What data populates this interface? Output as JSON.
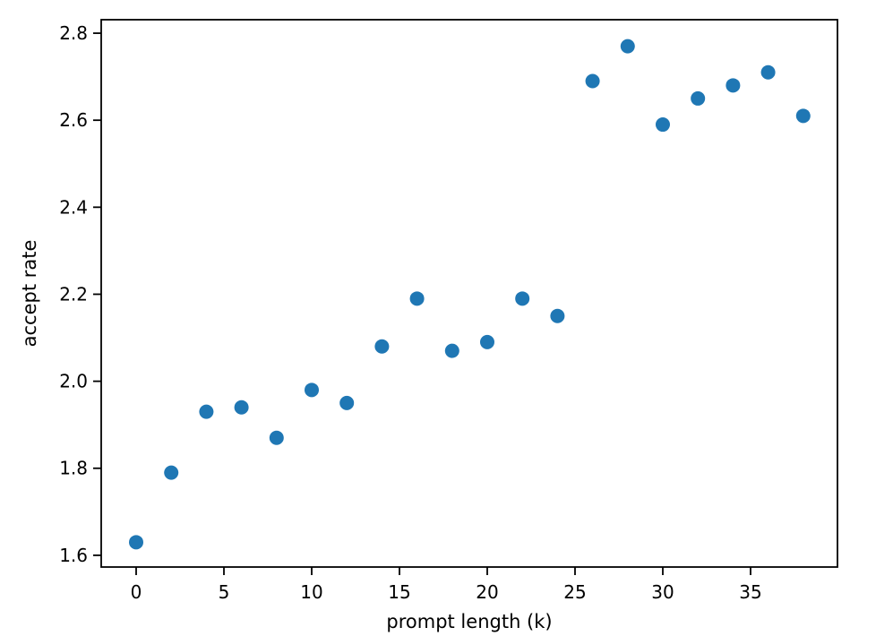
{
  "figure": {
    "background_color": "#ffffff"
  },
  "chart_data": {
    "type": "scatter",
    "title": "",
    "xlabel": "prompt length (k)",
    "ylabel": "accept rate",
    "x": [
      0,
      2,
      4,
      6,
      8,
      10,
      12,
      14,
      16,
      18,
      20,
      22,
      24,
      26,
      28,
      30,
      32,
      34,
      36,
      38
    ],
    "y": [
      1.63,
      1.79,
      1.93,
      1.94,
      1.87,
      1.98,
      1.95,
      2.08,
      2.19,
      2.07,
      2.09,
      2.19,
      2.15,
      2.69,
      2.77,
      2.59,
      2.65,
      2.68,
      2.71,
      2.61
    ],
    "xlim": [
      -1.99,
      39.95
    ],
    "ylim": [
      1.573,
      2.831
    ],
    "x_ticks": [
      0,
      5,
      10,
      15,
      20,
      25,
      30,
      35
    ],
    "x_tick_labels": [
      "0",
      "5",
      "10",
      "15",
      "20",
      "25",
      "30",
      "35"
    ],
    "y_ticks": [
      1.6,
      1.8,
      2.0,
      2.2,
      2.4,
      2.6,
      2.8
    ],
    "y_tick_labels": [
      "1.6",
      "1.8",
      "2.0",
      "2.2",
      "2.4",
      "2.6",
      "2.8"
    ],
    "grid": false,
    "legend": null,
    "marker_color": "#1f77b4",
    "marker_radius_px": 8,
    "axis_color": "#000000"
  }
}
